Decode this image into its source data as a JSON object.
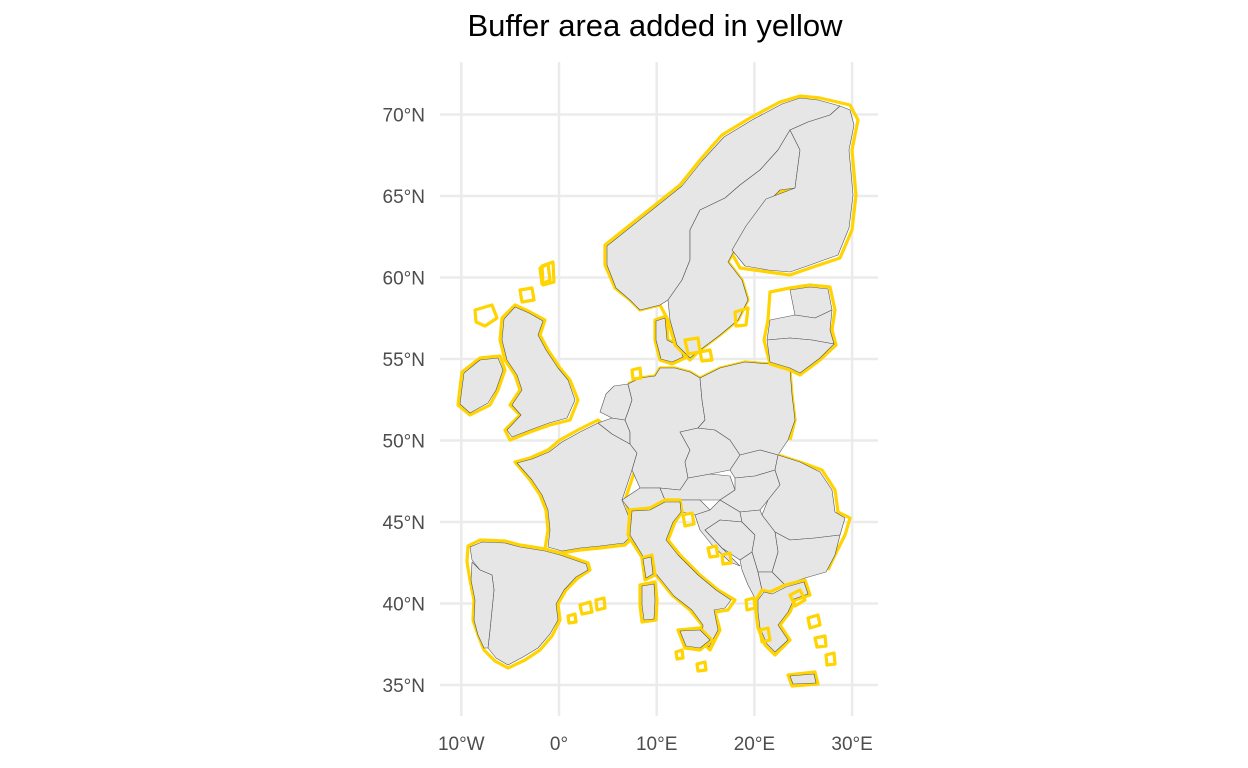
{
  "title": "Buffer area added in yellow",
  "colors": {
    "land": "#e6e6e6",
    "border": "#555555",
    "buffer": "#ffd400",
    "grid": "#ebebeb",
    "tick_text": "#4d4d4d"
  },
  "chart_data": {
    "type": "map",
    "title": "Buffer area added in yellow",
    "x_ticks": [
      {
        "value": -10,
        "label": "10°W"
      },
      {
        "value": 0,
        "label": "0°"
      },
      {
        "value": 10,
        "label": "10°E"
      },
      {
        "value": 20,
        "label": "20°E"
      },
      {
        "value": 30,
        "label": "30°E"
      }
    ],
    "y_ticks": [
      {
        "value": 35,
        "label": "35°N"
      },
      {
        "value": 40,
        "label": "40°N"
      },
      {
        "value": 45,
        "label": "45°N"
      },
      {
        "value": 50,
        "label": "50°N"
      },
      {
        "value": 55,
        "label": "55°N"
      },
      {
        "value": 60,
        "label": "60°N"
      },
      {
        "value": 65,
        "label": "65°N"
      },
      {
        "value": 70,
        "label": "70°N"
      }
    ],
    "xlim": [
      -11,
      32
    ],
    "ylim": [
      33,
      73
    ],
    "grid": true,
    "layers": [
      "country borders (light grey fill)",
      "buffer outline (yellow)"
    ]
  }
}
